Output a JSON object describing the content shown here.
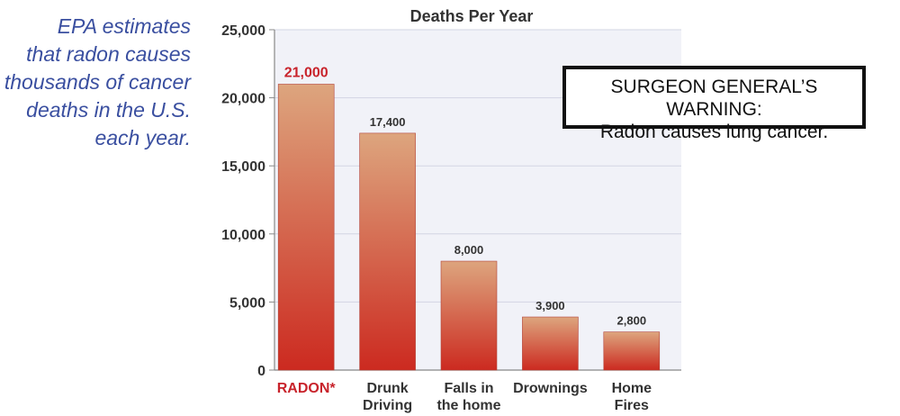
{
  "intro_text": {
    "lines": [
      "EPA estimates",
      "that radon causes",
      "thousands of cancer",
      "deaths in the U.S.",
      "each year."
    ]
  },
  "warning_box": {
    "line1": "SURGEON GENERAL’S WARNING:",
    "line2": "Radon causes lung cancer."
  },
  "colors": {
    "intro_text": "#3a4fa0",
    "bar_top": "#dda57e",
    "bar_bottom": "#cc2a20",
    "radon_label": "#c8232b",
    "plot_background": "#f1f2f8",
    "grid": "#d3d5e3"
  },
  "chart_data": {
    "type": "bar",
    "title": "Deaths Per Year",
    "xlabel": "",
    "ylabel": "",
    "ylim": [
      0,
      25000
    ],
    "yticks": [
      0,
      5000,
      10000,
      15000,
      20000,
      25000
    ],
    "ytick_labels": [
      "0",
      "5,000",
      "10,000",
      "15,000",
      "20,000",
      "25,000"
    ],
    "grid": true,
    "categories": [
      [
        "RADON*"
      ],
      [
        "Drunk",
        "Driving"
      ],
      [
        "Falls in",
        "the home"
      ],
      [
        "Drownings"
      ],
      [
        "Home",
        "Fires"
      ]
    ],
    "values": [
      21000,
      17400,
      8000,
      3900,
      2800
    ],
    "value_labels": [
      "21,000",
      "17,400",
      "8,000",
      "3,900",
      "2,800"
    ],
    "highlight_index": 0
  }
}
